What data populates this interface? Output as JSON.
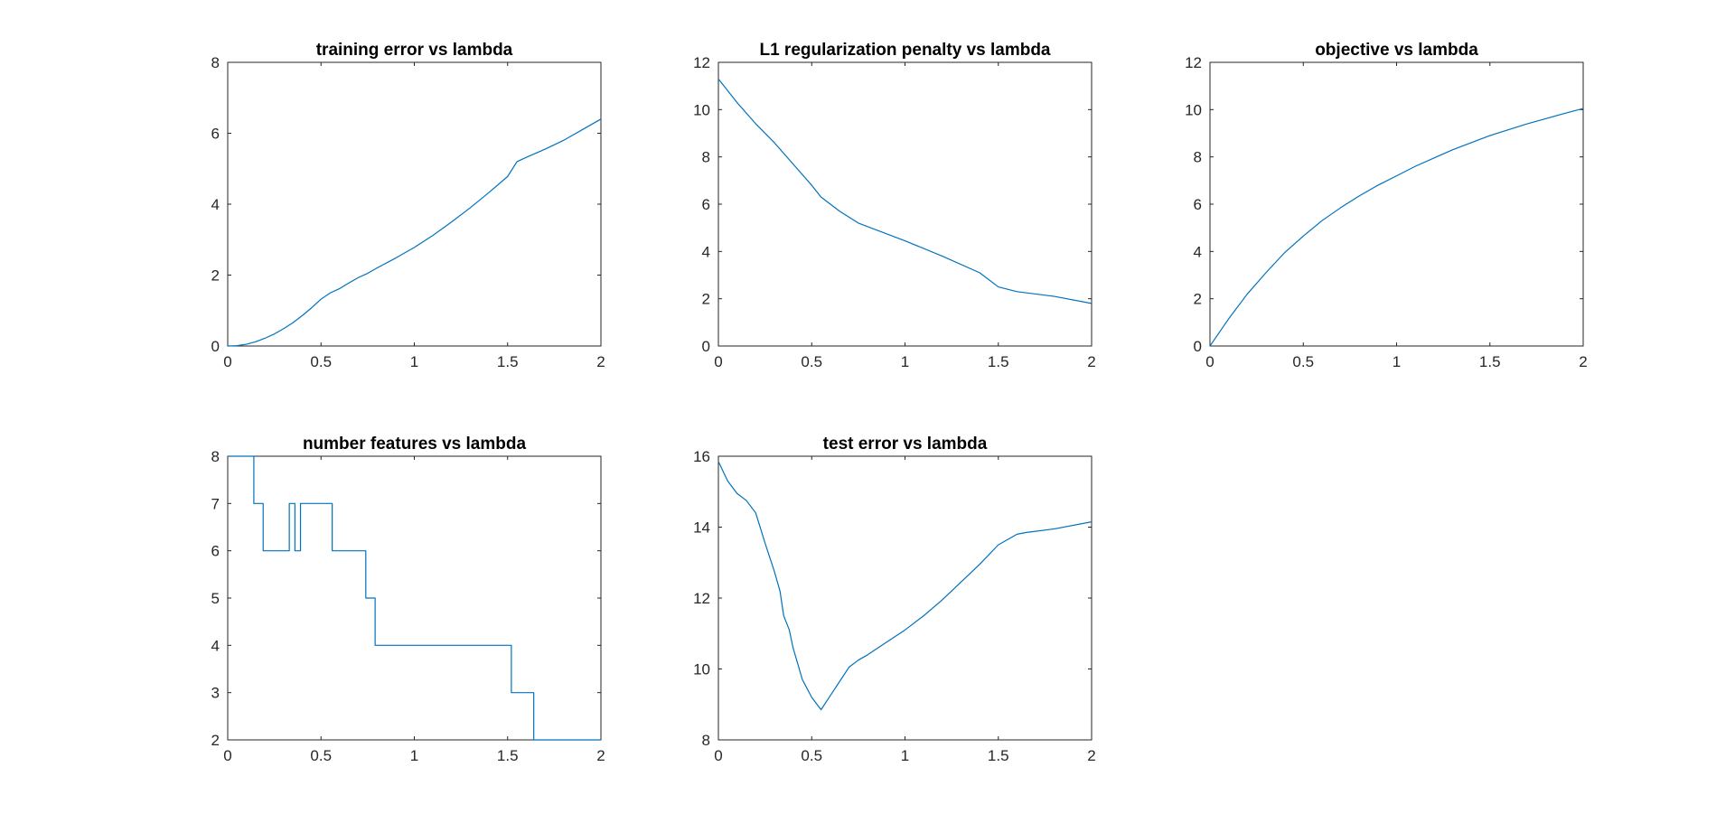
{
  "colors": {
    "series": "#0072BD",
    "axes": "#262626",
    "background": "#ffffff"
  },
  "chart_data": [
    {
      "type": "line",
      "title": "training error vs lambda",
      "xlim": [
        0,
        2
      ],
      "ylim": [
        0,
        8
      ],
      "xticks": [
        0,
        0.5,
        1,
        1.5,
        2
      ],
      "xtick_labels": [
        "0",
        "0.5",
        "1",
        "1.5",
        "2"
      ],
      "yticks": [
        0,
        2,
        4,
        6,
        8
      ],
      "ytick_labels": [
        "0",
        "2",
        "4",
        "6",
        "8"
      ],
      "grid": false,
      "x": [
        0,
        0.05,
        0.1,
        0.15,
        0.2,
        0.25,
        0.3,
        0.35,
        0.4,
        0.45,
        0.5,
        0.55,
        0.6,
        0.65,
        0.7,
        0.75,
        0.8,
        0.9,
        1.0,
        1.1,
        1.2,
        1.3,
        1.4,
        1.5,
        1.55,
        1.6,
        1.7,
        1.8,
        1.9,
        2.0
      ],
      "y": [
        0,
        0.01,
        0.05,
        0.12,
        0.22,
        0.34,
        0.49,
        0.66,
        0.86,
        1.08,
        1.32,
        1.5,
        1.62,
        1.78,
        1.93,
        2.05,
        2.2,
        2.48,
        2.78,
        3.12,
        3.5,
        3.9,
        4.33,
        4.78,
        5.2,
        5.32,
        5.55,
        5.8,
        6.1,
        6.4
      ]
    },
    {
      "type": "line",
      "title": "L1 regularization penalty vs lambda",
      "xlim": [
        0,
        2
      ],
      "ylim": [
        0,
        12
      ],
      "xticks": [
        0,
        0.5,
        1,
        1.5,
        2
      ],
      "xtick_labels": [
        "0",
        "0.5",
        "1",
        "1.5",
        "2"
      ],
      "yticks": [
        0,
        2,
        4,
        6,
        8,
        10,
        12
      ],
      "ytick_labels": [
        "0",
        "2",
        "4",
        "6",
        "8",
        "10",
        "12"
      ],
      "grid": false,
      "x": [
        0,
        0.1,
        0.2,
        0.3,
        0.4,
        0.5,
        0.55,
        0.65,
        0.75,
        0.85,
        1.0,
        1.2,
        1.4,
        1.5,
        1.6,
        1.8,
        2.0
      ],
      "y": [
        11.3,
        10.3,
        9.4,
        8.6,
        7.7,
        6.8,
        6.3,
        5.7,
        5.2,
        4.9,
        4.45,
        3.8,
        3.1,
        2.5,
        2.3,
        2.1,
        1.8
      ]
    },
    {
      "type": "line",
      "title": "objective vs lambda",
      "xlim": [
        0,
        2
      ],
      "ylim": [
        0,
        12
      ],
      "xticks": [
        0,
        0.5,
        1,
        1.5,
        2
      ],
      "xtick_labels": [
        "0",
        "0.5",
        "1",
        "1.5",
        "2"
      ],
      "yticks": [
        0,
        2,
        4,
        6,
        8,
        10,
        12
      ],
      "ytick_labels": [
        "0",
        "2",
        "4",
        "6",
        "8",
        "10",
        "12"
      ],
      "grid": false,
      "x": [
        0,
        0.1,
        0.2,
        0.3,
        0.4,
        0.5,
        0.6,
        0.7,
        0.8,
        0.9,
        1.0,
        1.1,
        1.2,
        1.3,
        1.4,
        1.5,
        1.6,
        1.7,
        1.8,
        1.9,
        2.0
      ],
      "y": [
        0,
        1.15,
        2.2,
        3.1,
        3.95,
        4.65,
        5.3,
        5.85,
        6.35,
        6.8,
        7.2,
        7.6,
        7.95,
        8.3,
        8.6,
        8.9,
        9.15,
        9.4,
        9.62,
        9.84,
        10.05
      ]
    },
    {
      "type": "line",
      "title": "number features vs lambda",
      "xlim": [
        0,
        2
      ],
      "ylim": [
        2,
        8
      ],
      "xticks": [
        0,
        0.5,
        1,
        1.5,
        2
      ],
      "xtick_labels": [
        "0",
        "0.5",
        "1",
        "1.5",
        "2"
      ],
      "yticks": [
        2,
        3,
        4,
        5,
        6,
        7,
        8
      ],
      "ytick_labels": [
        "2",
        "3",
        "4",
        "5",
        "6",
        "7",
        "8"
      ],
      "grid": false,
      "x": [
        0,
        0.14,
        0.14,
        0.19,
        0.19,
        0.33,
        0.33,
        0.36,
        0.36,
        0.39,
        0.39,
        0.56,
        0.56,
        0.74,
        0.74,
        0.79,
        0.79,
        1.52,
        1.52,
        1.64,
        1.64,
        2.0
      ],
      "y": [
        8,
        8,
        7,
        7,
        6,
        6,
        7,
        7,
        6,
        6,
        7,
        7,
        6,
        6,
        5,
        5,
        4,
        4,
        3,
        3,
        2,
        2
      ]
    },
    {
      "type": "line",
      "title": "test error vs lambda",
      "xlim": [
        0,
        2
      ],
      "ylim": [
        8,
        16
      ],
      "xticks": [
        0,
        0.5,
        1,
        1.5,
        2
      ],
      "xtick_labels": [
        "0",
        "0.5",
        "1",
        "1.5",
        "2"
      ],
      "yticks": [
        8,
        10,
        12,
        14,
        16
      ],
      "ytick_labels": [
        "8",
        "10",
        "12",
        "14",
        "16"
      ],
      "grid": false,
      "x": [
        0,
        0.05,
        0.1,
        0.15,
        0.2,
        0.25,
        0.3,
        0.33,
        0.35,
        0.38,
        0.4,
        0.45,
        0.5,
        0.55,
        0.6,
        0.65,
        0.7,
        0.75,
        0.8,
        0.9,
        1.0,
        1.1,
        1.2,
        1.3,
        1.4,
        1.5,
        1.55,
        1.6,
        1.65,
        1.8,
        2.0
      ],
      "y": [
        15.85,
        15.3,
        14.95,
        14.75,
        14.4,
        13.55,
        12.75,
        12.2,
        11.5,
        11.1,
        10.6,
        9.7,
        9.2,
        8.85,
        9.25,
        9.65,
        10.05,
        10.25,
        10.4,
        10.75,
        11.1,
        11.5,
        11.95,
        12.45,
        12.95,
        13.5,
        13.65,
        13.8,
        13.85,
        13.95,
        14.15
      ]
    }
  ]
}
